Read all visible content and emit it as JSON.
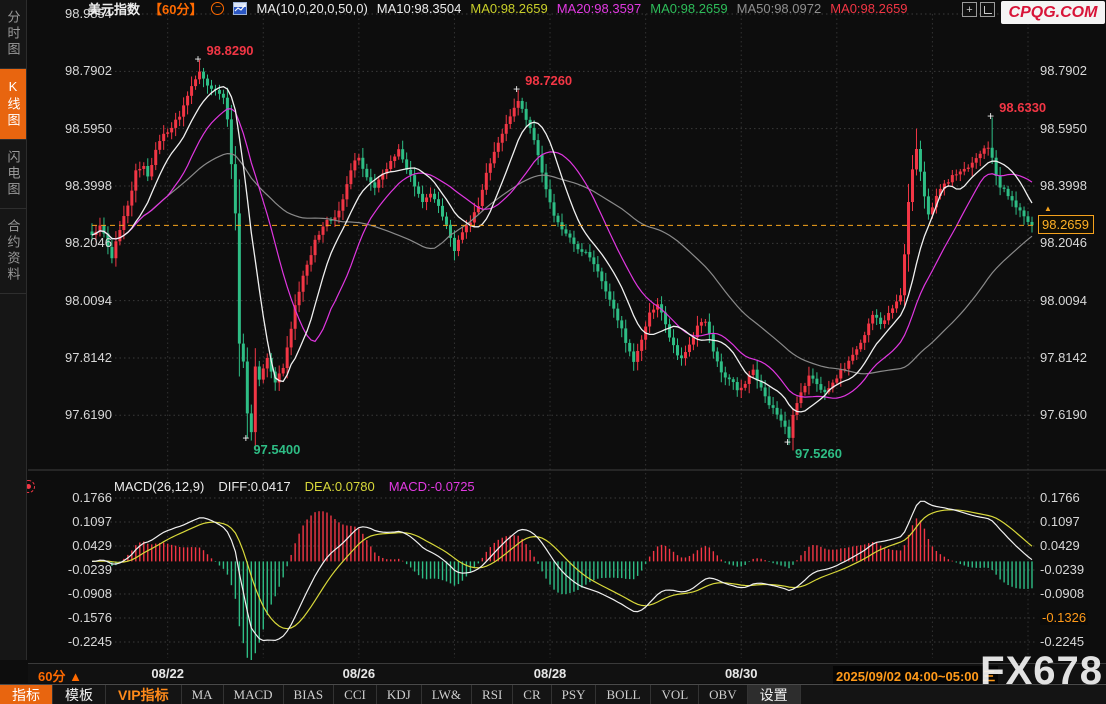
{
  "logo": "CPQG.COM",
  "watermark": "FX678",
  "sidebar": {
    "items": [
      {
        "label": "分时图",
        "active": false
      },
      {
        "label": "K线图",
        "active": true
      },
      {
        "label": "闪电图",
        "active": false
      },
      {
        "label": "合约资料",
        "active": false
      }
    ]
  },
  "header": {
    "items": [
      {
        "text": "美元指数",
        "color": "#ececec",
        "bold": true
      },
      {
        "text": "【60分】",
        "color": "#ff6a00",
        "bold": true
      },
      {
        "icon": "minus-circle-icon"
      },
      {
        "icon": "mini-chart-icon"
      },
      {
        "text": "MA(10,0,20,0,50,0)",
        "color": "#ececec"
      },
      {
        "text": "MA10:98.3504",
        "color": "#ececec"
      },
      {
        "text": "MA0:98.2659",
        "color": "#c9cf2a"
      },
      {
        "text": "MA20:98.3597",
        "color": "#e23ae2"
      },
      {
        "text": "MA0:98.2659",
        "color": "#2ebd5a"
      },
      {
        "text": "MA50:98.0972",
        "color": "#909090"
      },
      {
        "text": "MA0:98.2659",
        "color": "#f23645"
      }
    ],
    "window_icons": [
      "move-crosshair-icon",
      "axis-frame-icon"
    ]
  },
  "macd_header": {
    "items": [
      {
        "text": "MACD(26,12,9)",
        "color": "#ececec"
      },
      {
        "text": "DIFF:0.0417",
        "color": "#ececec"
      },
      {
        "text": "DEA:0.0780",
        "color": "#d8d83a"
      },
      {
        "text": "MACD:-0.0725",
        "color": "#e23ae2"
      }
    ]
  },
  "time_axis": {
    "period_label": "60分 ▲",
    "current": "2025/09/02 04:00~05:00 三"
  },
  "price_box": {
    "value": "98.2659"
  },
  "toolbar": {
    "buttons": [
      {
        "label": "指标",
        "style": "active cn"
      },
      {
        "label": "模板",
        "style": "cn"
      },
      {
        "label": "VIP指标",
        "style": "vip cn"
      },
      {
        "label": "MA",
        "style": ""
      },
      {
        "label": "MACD",
        "style": ""
      },
      {
        "label": "BIAS",
        "style": ""
      },
      {
        "label": "CCI",
        "style": ""
      },
      {
        "label": "KDJ",
        "style": ""
      },
      {
        "label": "LW&",
        "style": ""
      },
      {
        "label": "RSI",
        "style": ""
      },
      {
        "label": "CR",
        "style": ""
      },
      {
        "label": "PSY",
        "style": ""
      },
      {
        "label": "BOLL",
        "style": ""
      },
      {
        "label": "VOL",
        "style": ""
      },
      {
        "label": "OBV",
        "style": ""
      },
      {
        "label": "设置",
        "style": "settings cn"
      }
    ]
  },
  "colors": {
    "up": "#f23645",
    "down": "#2ebd85",
    "ma10": "#f0f0f0",
    "ma20": "#e036e0",
    "ma50": "#8a8a8a",
    "diff": "#f0f0f0",
    "dea": "#d8d83a",
    "grid": "#3a3a3a",
    "vgrid": "#323232",
    "current_price_line": "#f5a21d",
    "ann_high": "#f23645",
    "ann_low": "#2ebd85"
  },
  "chart_data": [
    {
      "id": "main",
      "type": "candlestick",
      "title": "美元指数",
      "period": "60分",
      "bars_count": 237,
      "ylim": [
        97.44,
        98.9854
      ],
      "y_ticks_left": [
        "98.9854",
        "98.7902",
        "98.5950",
        "98.3998",
        "98.2046",
        "98.0094",
        "97.8142",
        "97.6190"
      ],
      "y_ticks_right": [
        "98.7902",
        "98.5950",
        "98.3998",
        "98.2046",
        "98.0094",
        "97.8142",
        "97.6190"
      ],
      "x_ticks": [
        {
          "idx": 19,
          "label": "08/22"
        },
        {
          "idx": 67,
          "label": "08/26"
        },
        {
          "idx": 115,
          "label": "08/28"
        },
        {
          "idx": 163,
          "label": "08/30"
        }
      ],
      "day_boundaries_idx": [
        19,
        43,
        67,
        91,
        115,
        139,
        163,
        187,
        211,
        235
      ],
      "current_price": 98.2659,
      "ma_overlays": [
        {
          "period": 10,
          "color_key": "ma10"
        },
        {
          "period": 20,
          "color_key": "ma20"
        },
        {
          "period": 50,
          "color_key": "ma50"
        }
      ],
      "close_path": [
        [
          0,
          98.23
        ],
        [
          2,
          98.26
        ],
        [
          4,
          98.2
        ],
        [
          5,
          98.16
        ],
        [
          7,
          98.25
        ],
        [
          9,
          98.33
        ],
        [
          11,
          98.45
        ],
        [
          13,
          98.47
        ],
        [
          14,
          98.43
        ],
        [
          16,
          98.52
        ],
        [
          18,
          98.58
        ],
        [
          20,
          98.6
        ],
        [
          22,
          98.64
        ],
        [
          24,
          98.71
        ],
        [
          26,
          98.77
        ],
        [
          27,
          98.79
        ],
        [
          29,
          98.74
        ],
        [
          31,
          98.72
        ],
        [
          33,
          98.7
        ],
        [
          34,
          98.62
        ],
        [
          35,
          98.47
        ],
        [
          36,
          98.31
        ],
        [
          37,
          97.86
        ],
        [
          38,
          97.8
        ],
        [
          39,
          97.62
        ],
        [
          40,
          97.56
        ],
        [
          41,
          97.79
        ],
        [
          42,
          97.74
        ],
        [
          44,
          97.81
        ],
        [
          46,
          97.73
        ],
        [
          48,
          97.78
        ],
        [
          50,
          97.92
        ],
        [
          51,
          98.0
        ],
        [
          53,
          98.09
        ],
        [
          56,
          98.21
        ],
        [
          59,
          98.28
        ],
        [
          62,
          98.31
        ],
        [
          64,
          98.41
        ],
        [
          66,
          98.48
        ],
        [
          67,
          98.5
        ],
        [
          69,
          98.43
        ],
        [
          71,
          98.4
        ],
        [
          73,
          98.44
        ],
        [
          75,
          98.48
        ],
        [
          77,
          98.52
        ],
        [
          79,
          98.46
        ],
        [
          81,
          98.4
        ],
        [
          83,
          98.35
        ],
        [
          85,
          98.37
        ],
        [
          87,
          98.33
        ],
        [
          89,
          98.27
        ],
        [
          91,
          98.18
        ],
        [
          93,
          98.25
        ],
        [
          95,
          98.28
        ],
        [
          97,
          98.33
        ],
        [
          99,
          98.44
        ],
        [
          101,
          98.51
        ],
        [
          103,
          98.58
        ],
        [
          105,
          98.64
        ],
        [
          107,
          98.69
        ],
        [
          109,
          98.63
        ],
        [
          111,
          98.56
        ],
        [
          112,
          98.51
        ],
        [
          114,
          98.39
        ],
        [
          116,
          98.3
        ],
        [
          118,
          98.26
        ],
        [
          120,
          98.23
        ],
        [
          122,
          98.19
        ],
        [
          124,
          98.17
        ],
        [
          126,
          98.13
        ],
        [
          128,
          98.08
        ],
        [
          130,
          98.01
        ],
        [
          132,
          97.95
        ],
        [
          134,
          97.87
        ],
        [
          136,
          97.8
        ],
        [
          138,
          97.88
        ],
        [
          140,
          97.97
        ],
        [
          142,
          98.0
        ],
        [
          144,
          97.93
        ],
        [
          146,
          97.85
        ],
        [
          148,
          97.81
        ],
        [
          150,
          97.86
        ],
        [
          152,
          97.92
        ],
        [
          154,
          97.94
        ],
        [
          156,
          97.84
        ],
        [
          158,
          97.77
        ],
        [
          160,
          97.74
        ],
        [
          162,
          97.71
        ],
        [
          164,
          97.73
        ],
        [
          166,
          97.77
        ],
        [
          168,
          97.71
        ],
        [
          170,
          97.66
        ],
        [
          172,
          97.62
        ],
        [
          174,
          97.58
        ],
        [
          175,
          97.55
        ],
        [
          176,
          97.62
        ],
        [
          178,
          97.7
        ],
        [
          180,
          97.75
        ],
        [
          182,
          97.73
        ],
        [
          184,
          97.69
        ],
        [
          186,
          97.73
        ],
        [
          188,
          97.77
        ],
        [
          190,
          97.8
        ],
        [
          192,
          97.84
        ],
        [
          194,
          97.9
        ],
        [
          196,
          97.96
        ],
        [
          198,
          97.93
        ],
        [
          200,
          97.96
        ],
        [
          202,
          98.0
        ],
        [
          203,
          98.03
        ],
        [
          204,
          98.16
        ],
        [
          205,
          98.35
        ],
        [
          206,
          98.45
        ],
        [
          207,
          98.52
        ],
        [
          208,
          98.45
        ],
        [
          209,
          98.36
        ],
        [
          210,
          98.31
        ],
        [
          212,
          98.36
        ],
        [
          214,
          98.41
        ],
        [
          216,
          98.43
        ],
        [
          218,
          98.45
        ],
        [
          220,
          98.47
        ],
        [
          222,
          98.49
        ],
        [
          224,
          98.52
        ],
        [
          225,
          98.53
        ],
        [
          226,
          98.5
        ],
        [
          227,
          98.44
        ],
        [
          228,
          98.4
        ],
        [
          230,
          98.37
        ],
        [
          232,
          98.33
        ],
        [
          234,
          98.3
        ],
        [
          235,
          98.28
        ],
        [
          236,
          98.2659
        ]
      ],
      "forced_extremes": [
        {
          "idx": 27,
          "high": 98.829
        },
        {
          "idx": 39,
          "low": 97.54
        },
        {
          "idx": 107,
          "high": 98.726
        },
        {
          "idx": 175,
          "low": 97.526
        },
        {
          "idx": 207,
          "high": 98.595
        },
        {
          "idx": 226,
          "high": 98.633
        }
      ],
      "annotations": [
        {
          "idx": 27,
          "price": 98.829,
          "label": "98.8290",
          "side": "above",
          "color_key": "ann_high"
        },
        {
          "idx": 107,
          "price": 98.726,
          "label": "98.7260",
          "side": "above",
          "color_key": "ann_high"
        },
        {
          "idx": 226,
          "price": 98.633,
          "label": "98.6330",
          "side": "above",
          "color_key": "ann_high"
        },
        {
          "idx": 39,
          "price": 97.54,
          "label": "97.5400",
          "side": "below",
          "color_key": "ann_low"
        },
        {
          "idx": 175,
          "price": 97.526,
          "label": "97.5260",
          "side": "below",
          "color_key": "ann_low"
        }
      ]
    },
    {
      "id": "macd",
      "type": "macd",
      "params": "MACD(26,12,9)",
      "diff": 0.0417,
      "dea": 0.078,
      "macd": -0.0725,
      "y_ticks_left": [
        "0.1766",
        "0.1097",
        "0.0429",
        "-0.0239",
        "-0.0908",
        "-0.1576",
        "-0.2245"
      ],
      "y_ticks_right": [
        {
          "label": "0.1766"
        },
        {
          "label": "0.1097"
        },
        {
          "label": "0.0429"
        },
        {
          "label": "-0.0239"
        },
        {
          "label": "-0.0908"
        },
        {
          "label": "-0.1326",
          "highlight": true
        },
        {
          "label": "-0.2245"
        }
      ]
    }
  ]
}
